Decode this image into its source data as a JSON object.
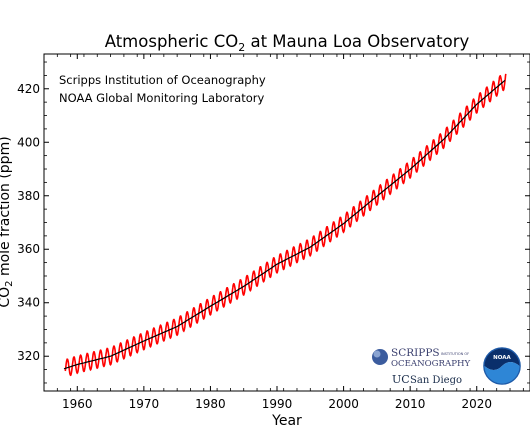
{
  "chart_data": {
    "type": "line",
    "title": {
      "prefix": "Atmospheric CO",
      "sub": "2",
      "suffix": " at Mauna Loa Observatory"
    },
    "xlabel": "Year",
    "ylabel": {
      "prefix": "CO",
      "sub": "2",
      "suffix": " mole fraction (ppm)"
    },
    "xlim": [
      1955,
      2028
    ],
    "ylim": [
      307,
      433
    ],
    "xticks": [
      1960,
      1970,
      1980,
      1990,
      2000,
      2010,
      2020
    ],
    "yticks": [
      320,
      340,
      360,
      380,
      400,
      420
    ],
    "grid": false,
    "series": [
      {
        "kind": "monthly",
        "color": "#ff0000",
        "x": [
          1958.2,
          2024.4
        ],
        "seasonal_amplitude_ppm": 3.2
      },
      {
        "kind": "seasonally adjusted trend",
        "color": "#000000",
        "x": [
          1958,
          1960,
          1965,
          1970,
          1975,
          1980,
          1985,
          1990,
          1995,
          2000,
          2005,
          2010,
          2015,
          2020,
          2024.4
        ],
        "y": [
          315.3,
          316.9,
          320.0,
          325.7,
          331.1,
          338.7,
          346.1,
          354.4,
          360.8,
          369.6,
          379.8,
          389.9,
          401.0,
          414.2,
          423.5
        ]
      }
    ],
    "annotations": [
      "Scripps Institution of Oceanography",
      "NOAA Global Monitoring Laboratory"
    ]
  },
  "logos": {
    "scripps_line1": "SCRIPPS",
    "scripps_small": "INSTITUTION OF",
    "scripps_line2": "OCEANOGRAPHY",
    "ucsd_uc": "UC",
    "ucsd_name": "San Diego",
    "noaa_text": "NOAA"
  },
  "colors": {
    "monthly": "#ff0000",
    "trend": "#000000",
    "noaa_blue": "#1d5aa8"
  }
}
